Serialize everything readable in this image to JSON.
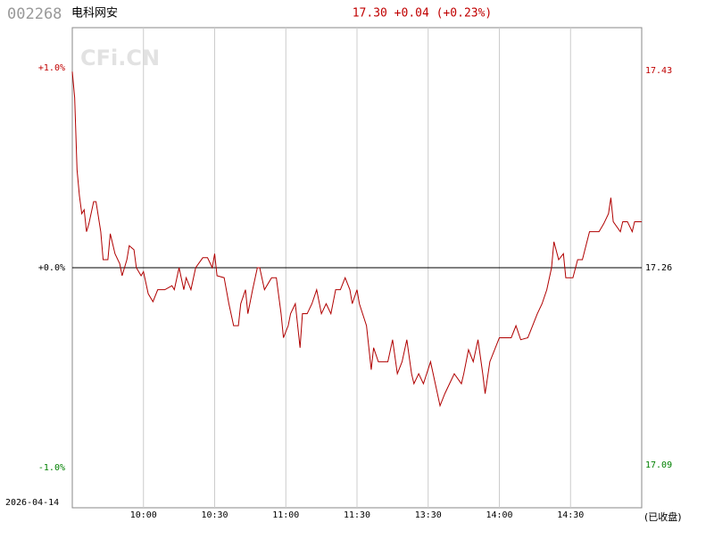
{
  "chart_data": {
    "type": "line",
    "code": "002268",
    "name": "电科网安",
    "quote": "17.30 +0.04 (+0.23%)",
    "watermark": "CFi.CN",
    "date": "2026-04-14",
    "status": "(已收盘)",
    "xlim": [
      0,
      240
    ],
    "xticks": [
      {
        "value": 30,
        "label": "10:00"
      },
      {
        "value": 60,
        "label": "10:30"
      },
      {
        "value": 90,
        "label": "11:00"
      },
      {
        "value": 120,
        "label": "11:30"
      },
      {
        "value": 150,
        "label": "13:30"
      },
      {
        "value": 180,
        "label": "14:00"
      },
      {
        "value": 210,
        "label": "14:30"
      }
    ],
    "ylim": [
      -1.2,
      1.2
    ],
    "yticks": [
      {
        "value": 1,
        "label": "+1.0%"
      },
      {
        "value": 0,
        "label": "+0.0%"
      },
      {
        "value": -1,
        "label": "-1.0%"
      }
    ],
    "y2lim": [
      17.053,
      17.467
    ],
    "y2ticks": [
      17.43,
      17.26,
      17.09
    ],
    "tick_colors": [
      "#c00000",
      "#000000",
      "#008000"
    ],
    "grid": true,
    "series": [
      {
        "color": "#b00000",
        "x": [
          0,
          1,
          2,
          3,
          4,
          5,
          6,
          7,
          9,
          10,
          12,
          13,
          15,
          16,
          18,
          20,
          21,
          23,
          24,
          26,
          27,
          29,
          30,
          32,
          34,
          36,
          39,
          42,
          43,
          45,
          47,
          48,
          50,
          52,
          55,
          57,
          59,
          60,
          61,
          64,
          66,
          68,
          70,
          71,
          73,
          74,
          76,
          78,
          79,
          81,
          83,
          84,
          86,
          88,
          89,
          91,
          92,
          94,
          96,
          97,
          99,
          101,
          103,
          105,
          107,
          109,
          111,
          113,
          115,
          117,
          118,
          120,
          121,
          124,
          126,
          127,
          129,
          133,
          135,
          137,
          139,
          141,
          143,
          144,
          146,
          148,
          151,
          153,
          155,
          157,
          159,
          161,
          164,
          165,
          167,
          169,
          171,
          173,
          174,
          176,
          178,
          180,
          185,
          187,
          189,
          192,
          194,
          196,
          198,
          200,
          202,
          203,
          205,
          207,
          208,
          211,
          213,
          215,
          218,
          222,
          224,
          226,
          227,
          228,
          231,
          232,
          234,
          236,
          237,
          240
        ],
        "values": [
          0.98,
          0.85,
          0.49,
          0.36,
          0.27,
          0.29,
          0.18,
          0.22,
          0.33,
          0.33,
          0.18,
          0.04,
          0.04,
          0.17,
          0.07,
          0.02,
          -0.04,
          0.04,
          0.11,
          0.09,
          0.0,
          -0.04,
          -0.02,
          -0.13,
          -0.17,
          -0.11,
          -0.11,
          -0.09,
          -0.11,
          0.0,
          -0.11,
          -0.05,
          -0.11,
          0.0,
          0.05,
          0.05,
          0.0,
          0.07,
          -0.04,
          -0.05,
          -0.18,
          -0.29,
          -0.29,
          -0.18,
          -0.11,
          -0.23,
          -0.11,
          0.0,
          0.0,
          -0.11,
          -0.07,
          -0.05,
          -0.05,
          -0.23,
          -0.35,
          -0.29,
          -0.23,
          -0.18,
          -0.4,
          -0.23,
          -0.23,
          -0.18,
          -0.11,
          -0.23,
          -0.18,
          -0.23,
          -0.11,
          -0.11,
          -0.05,
          -0.11,
          -0.18,
          -0.11,
          -0.18,
          -0.29,
          -0.51,
          -0.4,
          -0.47,
          -0.47,
          -0.36,
          -0.53,
          -0.47,
          -0.36,
          -0.53,
          -0.58,
          -0.53,
          -0.58,
          -0.47,
          -0.58,
          -0.69,
          -0.63,
          -0.58,
          -0.53,
          -0.58,
          -0.53,
          -0.41,
          -0.47,
          -0.36,
          -0.53,
          -0.63,
          -0.47,
          -0.41,
          -0.35,
          -0.35,
          -0.29,
          -0.36,
          -0.35,
          -0.29,
          -0.23,
          -0.18,
          -0.11,
          0.0,
          0.13,
          0.04,
          0.07,
          -0.05,
          -0.05,
          0.04,
          0.04,
          0.18,
          0.18,
          0.22,
          0.27,
          0.35,
          0.23,
          0.18,
          0.23,
          0.23,
          0.18,
          0.23,
          0.23
        ]
      }
    ]
  }
}
